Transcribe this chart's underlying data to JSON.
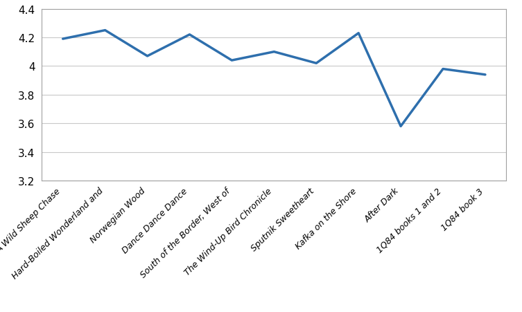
{
  "categories": [
    "A Wild Sheep Chase",
    "Hard-Boiled Wonderland and",
    "Norwegian Wood",
    "Dance Dance Dance",
    "South of the Border, West of",
    "The Wind-Up Bird Chronicle",
    "Sputnik Sweetheart",
    "Kafka on the Shore",
    "After Dark",
    "1Q84 books 1 and 2",
    "1Q84 book 3"
  ],
  "values": [
    4.19,
    4.25,
    4.07,
    4.22,
    4.04,
    4.1,
    4.02,
    4.23,
    3.58,
    3.98,
    3.94
  ],
  "line_color": "#2e6fad",
  "line_width": 2.5,
  "ylim": [
    3.2,
    4.4
  ],
  "yticks": [
    3.2,
    3.4,
    3.6,
    3.8,
    4.0,
    4.2,
    4.4
  ],
  "ytick_labels": [
    "3.2",
    "3.4",
    "3.6",
    "3.8",
    "4",
    "4.2",
    "4.4"
  ],
  "background_color": "#ffffff",
  "grid_color": "#c8c8c8",
  "spine_color": "#a0a0a0",
  "label_fontsize": 9,
  "ytick_fontsize": 11
}
